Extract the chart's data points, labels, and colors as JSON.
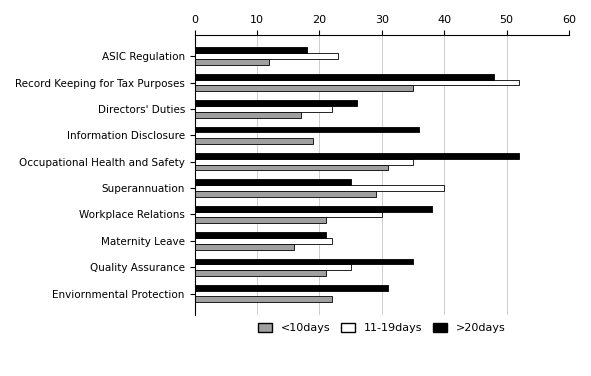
{
  "categories": [
    "ASIC Regulation",
    "Record Keeping for Tax Purposes",
    "Directors' Duties",
    "Information Disclosure",
    "Occupational Health and Safety",
    "Superannuation",
    "Workplace Relations",
    "Maternity Leave",
    "Quality Assurance",
    "Enviornmental Protection"
  ],
  "lt10": [
    12,
    35,
    17,
    19,
    31,
    29,
    21,
    16,
    21,
    22
  ],
  "d11_19": [
    23,
    52,
    22,
    0,
    35,
    40,
    30,
    22,
    25,
    0
  ],
  "gt20": [
    18,
    48,
    26,
    36,
    52,
    25,
    38,
    21,
    35,
    31
  ],
  "colors": {
    "lt10": "#a0a0a0",
    "d11_19": "#ffffff",
    "gt20": "#000000"
  },
  "legend_labels": [
    "<10days",
    "11-19days",
    ">20days"
  ],
  "xlim": [
    0,
    60
  ],
  "xticks": [
    0,
    10,
    20,
    30,
    40,
    50,
    60
  ],
  "bar_height": 0.22,
  "edgecolor": "#000000",
  "background_color": "#ffffff",
  "figsize": [
    5.91,
    3.76
  ],
  "dpi": 100
}
